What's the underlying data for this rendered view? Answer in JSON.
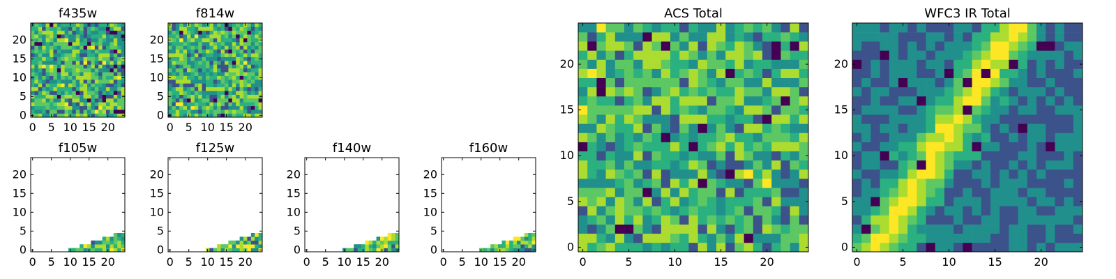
{
  "chart_data": [
    {
      "type": "heatmap",
      "title": "f435w",
      "grid_size": 25,
      "xticks": [
        0,
        5,
        10,
        15,
        20
      ],
      "yticks": [
        0,
        5,
        10,
        15,
        20
      ],
      "colormap": "viridis",
      "pattern": "noise"
    },
    {
      "type": "heatmap",
      "title": "f814w",
      "grid_size": 25,
      "xticks": [
        0,
        5,
        10,
        15,
        20
      ],
      "yticks": [
        0,
        5,
        10,
        15,
        20
      ],
      "colormap": "viridis",
      "pattern": "noise"
    },
    {
      "type": "heatmap",
      "title": "f105w",
      "grid_size": 25,
      "xticks": [
        0,
        5,
        10,
        15,
        20
      ],
      "yticks": [
        0,
        5,
        10,
        15,
        20
      ],
      "colormap": "viridis",
      "pattern": "corner_wedge",
      "note_visible": "mostly empty (white) with a small colored wedge at lower-right"
    },
    {
      "type": "heatmap",
      "title": "f125w",
      "grid_size": 25,
      "xticks": [
        0,
        5,
        10,
        15,
        20
      ],
      "yticks": [
        0,
        5,
        10,
        15,
        20
      ],
      "colormap": "viridis",
      "pattern": "corner_wedge"
    },
    {
      "type": "heatmap",
      "title": "f140w",
      "grid_size": 25,
      "xticks": [
        0,
        5,
        10,
        15,
        20
      ],
      "yticks": [
        0,
        5,
        10,
        15,
        20
      ],
      "colormap": "viridis",
      "pattern": "corner_wedge"
    },
    {
      "type": "heatmap",
      "title": "f160w",
      "grid_size": 25,
      "xticks": [
        0,
        5,
        10,
        15,
        20
      ],
      "yticks": [
        0,
        5,
        10,
        15,
        20
      ],
      "colormap": "viridis",
      "pattern": "corner_wedge"
    },
    {
      "type": "heatmap",
      "title": "ACS Total",
      "grid_size": 25,
      "xticks": [
        0,
        5,
        10,
        15,
        20
      ],
      "yticks": [
        0,
        5,
        10,
        15,
        20
      ],
      "colormap": "viridis",
      "pattern": "noise"
    },
    {
      "type": "heatmap",
      "title": "WFC3 IR Total",
      "grid_size": 25,
      "xticks": [
        0,
        5,
        10,
        15,
        20
      ],
      "yticks": [
        0,
        5,
        10,
        15,
        20
      ],
      "colormap": "viridis",
      "pattern": "diagonal_band"
    }
  ],
  "colors": {
    "viridis": [
      "#440154",
      "#3b528b",
      "#21908c",
      "#2bb07f",
      "#5dc863",
      "#addc30",
      "#fde725"
    ],
    "axes": "#000000",
    "background": "#ffffff"
  }
}
